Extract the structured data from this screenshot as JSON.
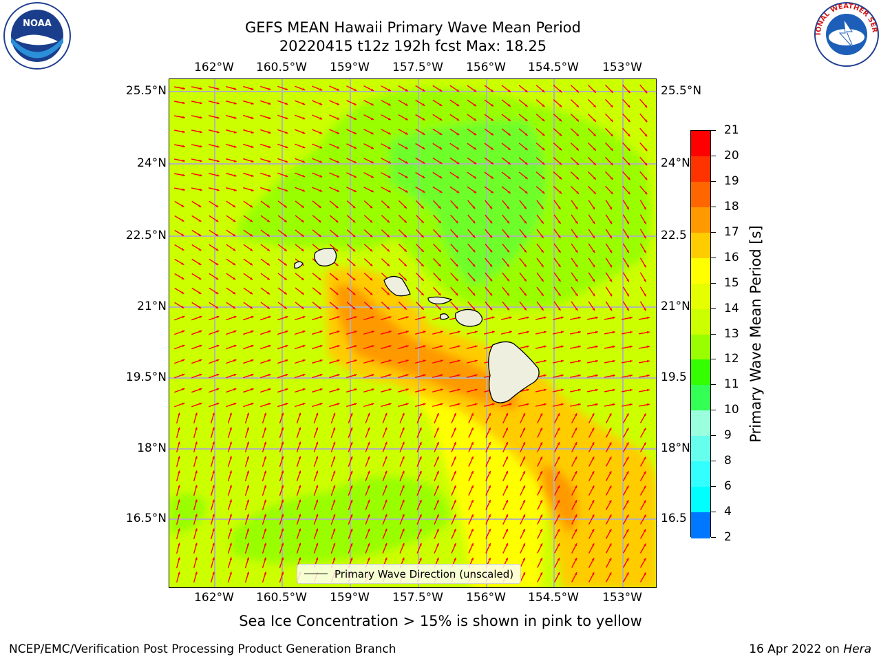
{
  "title": {
    "line1": "GEFS MEAN Hawaii Primary Wave Mean Period",
    "line2": "20220415 t12z 192h fcst   Max: 18.25"
  },
  "logos": {
    "left": {
      "name": "noaa-logo",
      "text": "NOAA"
    },
    "right": {
      "name": "nws-logo",
      "text": "NATIONAL WEATHER SERVICE"
    }
  },
  "x_ticks": [
    "162°W",
    "160.5°W",
    "159°W",
    "157.5°W",
    "156°W",
    "154.5°W",
    "153°W"
  ],
  "y_ticks_left": [
    "25.5°N",
    "24°N",
    "22.5°N",
    "21°N",
    "19.5°N",
    "18°N",
    "16.5°N"
  ],
  "y_ticks_right": [
    "25.5°N",
    "24°N",
    "22.5",
    "21°N",
    "19.5",
    "18°N",
    "16.5"
  ],
  "colorbar": {
    "label": "Primary Wave Mean Period [s]",
    "ticks": [
      "21",
      "20",
      "19",
      "18",
      "17",
      "16",
      "15",
      "14",
      "13",
      "12",
      "11",
      "10",
      "9",
      "8",
      "6",
      "4",
      "2"
    ],
    "colors": [
      "#ff0000",
      "#ff3300",
      "#ff6600",
      "#ff9900",
      "#ffcc00",
      "#ffff00",
      "#e6ff00",
      "#ccff00",
      "#99ff00",
      "#33ff00",
      "#33ff55",
      "#99ffdd",
      "#66ffee",
      "#33ffff",
      "#00ffff",
      "#0077ff",
      "#0000ff"
    ]
  },
  "legend": {
    "label": "Primary Wave Direction (unscaled)"
  },
  "subnote": "Sea Ice Concentration > 15% is shown in pink to yellow",
  "footer": {
    "left": "NCEP/EMC/Verification Post Processing Product Generation Branch",
    "right_prefix": "16 Apr 2022 on ",
    "right_host": "Hera"
  },
  "map_colors": {
    "base": "#ccff00",
    "green": "#99ff00",
    "deeper_green": "#66ff33",
    "yellow": "#ffff00",
    "orange": "#ffcc00",
    "dark_orange": "#ff9900",
    "land": "#efefdf",
    "arrow": "#ff0000",
    "grid": "#b3b3b3"
  }
}
